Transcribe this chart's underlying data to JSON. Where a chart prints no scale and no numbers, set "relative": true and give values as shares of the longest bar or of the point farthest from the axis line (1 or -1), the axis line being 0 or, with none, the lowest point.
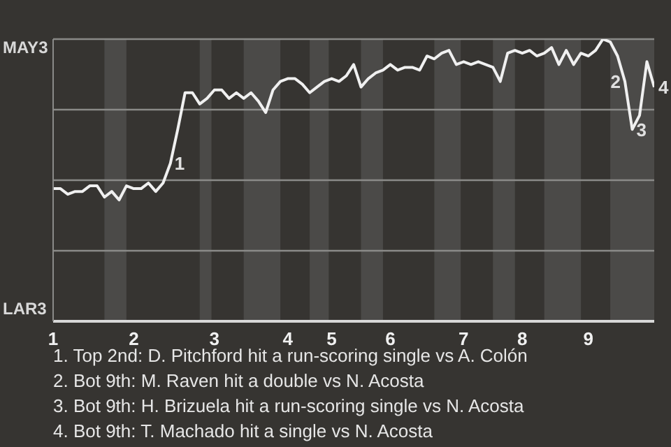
{
  "chart_data": {
    "type": "line",
    "color": "#f0f0f0",
    "relative": true,
    "categories": [
      "1",
      null,
      null,
      null,
      null,
      null,
      null,
      null,
      null,
      null,
      null,
      "2",
      null,
      null,
      null,
      null,
      null,
      null,
      null,
      null,
      null,
      null,
      "3",
      null,
      null,
      null,
      null,
      null,
      null,
      null,
      null,
      null,
      "4",
      null,
      null,
      null,
      null,
      null,
      "5",
      null,
      null,
      null,
      null,
      null,
      null,
      null,
      "6",
      null,
      null,
      null,
      null,
      null,
      null,
      null,
      null,
      null,
      "7",
      null,
      null,
      null,
      null,
      null,
      null,
      null,
      "8",
      null,
      null,
      null,
      null,
      null,
      null,
      null,
      null,
      "9",
      null,
      null,
      null,
      null,
      null,
      null,
      null,
      null,
      null
    ],
    "values": [
      0.47,
      0.47,
      0.45,
      0.46,
      0.46,
      0.48,
      0.48,
      0.44,
      0.46,
      0.43,
      0.48,
      0.47,
      0.47,
      0.49,
      0.46,
      0.49,
      0.56,
      0.68,
      0.81,
      0.81,
      0.77,
      0.79,
      0.82,
      0.82,
      0.79,
      0.81,
      0.79,
      0.81,
      0.78,
      0.74,
      0.82,
      0.85,
      0.86,
      0.86,
      0.84,
      0.81,
      0.83,
      0.85,
      0.86,
      0.85,
      0.87,
      0.91,
      0.83,
      0.86,
      0.88,
      0.89,
      0.91,
      0.89,
      0.9,
      0.9,
      0.89,
      0.94,
      0.93,
      0.95,
      0.96,
      0.91,
      0.92,
      0.91,
      0.92,
      0.91,
      0.9,
      0.85,
      0.95,
      0.96,
      0.95,
      0.96,
      0.94,
      0.95,
      0.97,
      0.91,
      0.96,
      0.91,
      0.95,
      0.94,
      0.96,
      1,
      0.99,
      0.94,
      0.85,
      0.68,
      0.73,
      0.92,
      0.83
    ],
    "grid": "y",
    "annotations": [
      "MAY3",
      "LAR3",
      "1",
      "2",
      "3",
      "4",
      "1. Top 2nd: D. Pitchford hit a run-scoring single vs A. Colón",
      "2. Bot 9th: M. Raven hit a double vs N. Acosta",
      "3. Bot 9th: H. Brizuela hit a run-scoring single vs N. Acosta",
      "4. Bot 9th: T. Machado hit a single vs N. Acosta"
    ]
  }
}
